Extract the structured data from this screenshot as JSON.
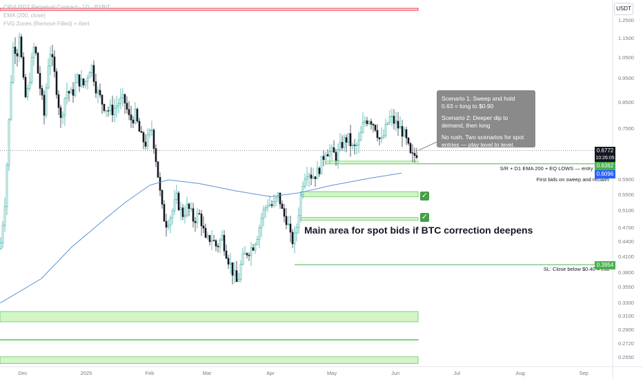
{
  "legend": {
    "line1": "CRVUSDT Perpetual Contract · 1D · BYBIT",
    "line2": "EMA (200, close)",
    "line3": "FVG Zones (Remove Filled) + Alert"
  },
  "axis_unit": "USDT",
  "note": {
    "scenario1": "Scenario 1: Sweep and hold\n0.63 = long to $0.90",
    "scenario2": "Scenario 2: Deeper dip to\ndemand, then long",
    "scenario3": "No rush. Two scenarios for spot\nentries — play level to level."
  },
  "labels": {
    "main_area": "Main area for spot bids if BTC correction deepens",
    "sr_line": "S/R + D1 EMA 200 + EQ LOWS — entry trigger",
    "first_bids": "First bids on sweep and reclaim",
    "stop_loss": "SL: Close below $0.40 = exit"
  },
  "price_tags": {
    "current": "0.6772",
    "countdown": "10:26:05",
    "sr": "0.6362",
    "ema": "0.6096",
    "sl": "0.3954"
  },
  "colors": {
    "bull": "#26a69a",
    "bear": "#131722",
    "ema": "#5b8fd6",
    "zone_fill": "#d4f5c8",
    "zone_border": "#5cc95c",
    "level": "#4caf50",
    "red_zone": "#f23645",
    "ema_tag": "#2962ff",
    "current_tag": "#131722"
  },
  "chart_data": {
    "type": "candlestick",
    "title": "CRVUSDT Perpetual Contract · 1D · BYBIT",
    "y_scale": "log",
    "ylim": [
      0.245,
      1.33
    ],
    "y_ticks": [
      "1.2500",
      "1.1500",
      "1.0500",
      "0.9500",
      "0.8500",
      "0.7500",
      "0.6772",
      "0.6362",
      "0.6096",
      "0.5900",
      "0.5500",
      "0.5100",
      "0.4700",
      "0.4400",
      "0.4100",
      "0.3954",
      "0.3800",
      "0.3550",
      "0.3300",
      "0.3100",
      "0.2900",
      "0.2720",
      "0.2550"
    ],
    "x_ticks": [
      "Dec",
      "2025",
      "Feb",
      "Mar",
      "Apr",
      "May",
      "Jun",
      "Jul",
      "Aug",
      "Sep"
    ],
    "current_price": 0.6772,
    "levels": [
      {
        "name": "sr",
        "value": 0.6362
      },
      {
        "name": "sl",
        "value": 0.3954
      }
    ],
    "zones": [
      {
        "low": 0.545,
        "high": 0.558
      },
      {
        "low": 0.488,
        "high": 0.494
      },
      {
        "low": 0.302,
        "high": 0.317
      },
      {
        "low": 0.277,
        "high": 0.278
      },
      {
        "low": 0.248,
        "high": 0.256
      }
    ],
    "red_zone": {
      "low": 1.312,
      "high": 1.325
    },
    "ema200": [
      [
        "2024-11-20",
        0.33
      ],
      [
        "2024-12-10",
        0.37
      ],
      [
        "2024-12-25",
        0.43
      ],
      [
        "2025-01-10",
        0.49
      ],
      [
        "2025-01-20",
        0.53
      ],
      [
        "2025-02-01",
        0.575
      ],
      [
        "2025-02-10",
        0.59
      ],
      [
        "2025-02-25",
        0.58
      ],
      [
        "2025-03-15",
        0.56
      ],
      [
        "2025-04-01",
        0.545
      ],
      [
        "2025-04-15",
        0.555
      ],
      [
        "2025-05-01",
        0.575
      ],
      [
        "2025-05-20",
        0.595
      ],
      [
        "2025-06-04",
        0.609
      ]
    ],
    "ohlc_monthly_summary": [
      {
        "period": "2024-11",
        "open": 0.35,
        "high": 0.6,
        "low": 0.3,
        "close": 0.6
      },
      {
        "period": "2024-12",
        "open": 0.6,
        "high": 1.3,
        "low": 0.55,
        "close": 0.95
      },
      {
        "period": "2025-01",
        "open": 0.95,
        "high": 1.1,
        "low": 0.65,
        "close": 0.7
      },
      {
        "period": "2025-02",
        "open": 0.7,
        "high": 0.7,
        "low": 0.4,
        "close": 0.5
      },
      {
        "period": "2025-03",
        "open": 0.5,
        "high": 0.58,
        "low": 0.35,
        "close": 0.5
      },
      {
        "period": "2025-04",
        "open": 0.5,
        "high": 0.7,
        "low": 0.4,
        "close": 0.7
      },
      {
        "period": "2025-05",
        "open": 0.7,
        "high": 0.86,
        "low": 0.62,
        "close": 0.7
      },
      {
        "period": "2025-06",
        "open": 0.7,
        "high": 0.72,
        "low": 0.64,
        "close": 0.677
      }
    ]
  }
}
